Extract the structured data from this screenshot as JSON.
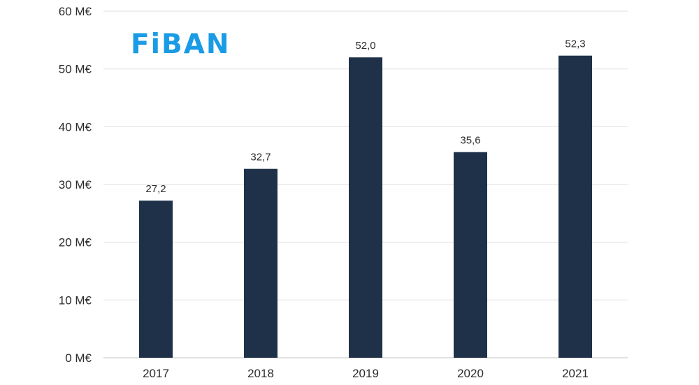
{
  "logo": {
    "text": "FiBAN",
    "color": "#1a9be6"
  },
  "chart_data": {
    "type": "bar",
    "categories": [
      "2017",
      "2018",
      "2019",
      "2020",
      "2021"
    ],
    "values": [
      27.2,
      32.7,
      52.0,
      35.6,
      52.3
    ],
    "data_labels": [
      "27,2",
      "32,7",
      "52,0",
      "35,6",
      "52,3"
    ],
    "y_ticks": [
      0,
      10,
      20,
      30,
      40,
      50,
      60
    ],
    "y_tick_labels": [
      "0 M€",
      "10 M€",
      "20 M€",
      "30 M€",
      "40 M€",
      "50 M€",
      "60 M€"
    ],
    "ylim": [
      0,
      60
    ],
    "grid": true,
    "legend": "none",
    "bar_color": "#1e3148",
    "grid_color": "#e3e3e3"
  }
}
